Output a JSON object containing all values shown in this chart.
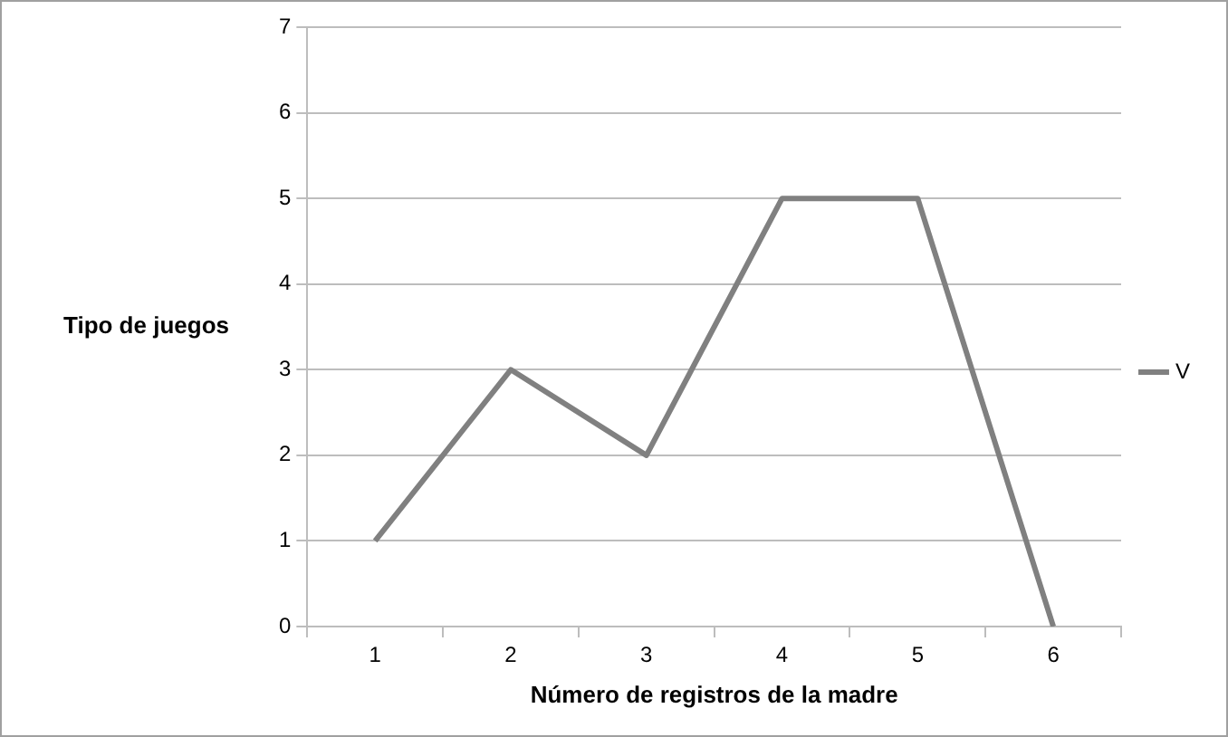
{
  "chart_data": {
    "type": "line",
    "xlabel": "Número de registros de la madre",
    "ylabel": "Tipo de juegos",
    "categories": [
      "1",
      "2",
      "3",
      "4",
      "5",
      "6"
    ],
    "series": [
      {
        "name": "V",
        "color": "#808080",
        "values": [
          1,
          3,
          2,
          5,
          5,
          0
        ]
      }
    ],
    "ylim": [
      0,
      7
    ],
    "yticks": [
      0,
      1,
      2,
      3,
      4,
      5,
      6,
      7
    ],
    "grid": "y",
    "legend": "right",
    "marker": "none",
    "line_style": "solid"
  }
}
